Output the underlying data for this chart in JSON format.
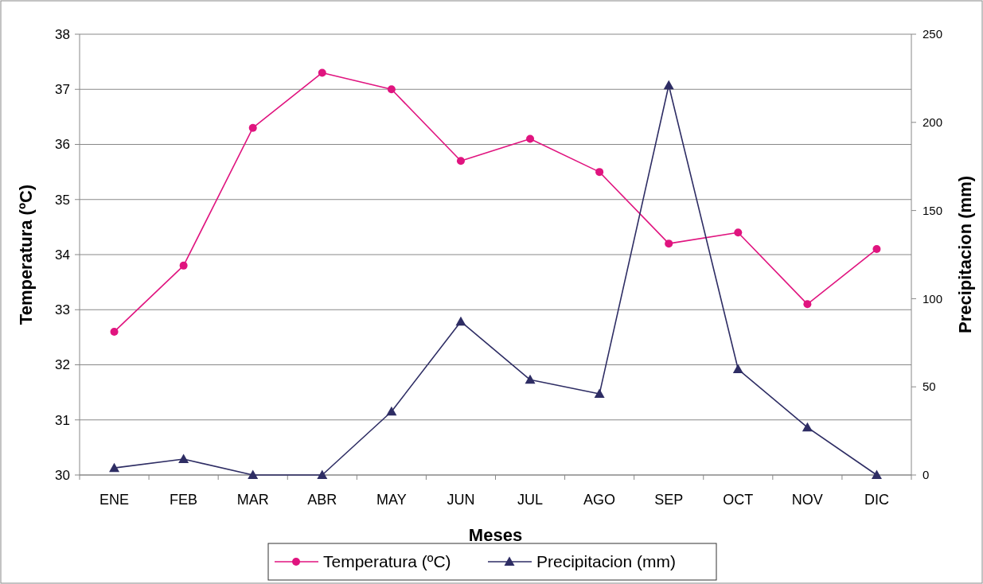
{
  "chart_data": {
    "type": "line",
    "xlabel": "Meses",
    "ylabel": "Temperatura (ºC)",
    "y2label": "Precipitacion (mm)",
    "categories": [
      "ENE",
      "FEB",
      "MAR",
      "ABR",
      "MAY",
      "JUN",
      "JUL",
      "AGO",
      "SEP",
      "OCT",
      "NOV",
      "DIC"
    ],
    "series": [
      {
        "name": "Temperatura (ºC)",
        "color": "#e0147f",
        "marker": "circle",
        "values": [
          32.6,
          33.8,
          36.3,
          37.3,
          37.0,
          35.7,
          36.1,
          35.5,
          34.2,
          34.4,
          33.1,
          34.1
        ]
      },
      {
        "name": "Precipitacion (mm)",
        "color": "#2e2d64",
        "marker": "triangle",
        "axis": "y2",
        "values": [
          4,
          9,
          0,
          0,
          36,
          87,
          54,
          46,
          221,
          60,
          27,
          0
        ]
      }
    ],
    "ylim": [
      30,
      38
    ],
    "yticks": [
      30,
      31,
      32,
      33,
      34,
      35,
      36,
      37,
      38
    ],
    "y2lim": [
      0,
      250
    ],
    "y2ticks": [
      0,
      50,
      100,
      150,
      200,
      250
    ],
    "grid": "y",
    "legend": "bottom",
    "line_style": "solid"
  }
}
